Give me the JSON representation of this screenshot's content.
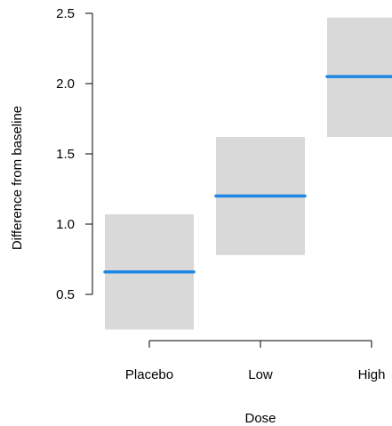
{
  "chart_data": {
    "type": "crossbar",
    "title": "",
    "xlabel": "Dose",
    "ylabel": "Difference from baseline",
    "categories": [
      "Placebo",
      "Low",
      "High"
    ],
    "series": [
      {
        "values": [
          {
            "category": "Placebo",
            "mean": 0.66,
            "lower": 0.25,
            "upper": 1.07
          },
          {
            "category": "Low",
            "mean": 1.2,
            "lower": 0.78,
            "upper": 1.62
          },
          {
            "category": "High",
            "mean": 2.05,
            "lower": 1.62,
            "upper": 2.47
          }
        ]
      }
    ],
    "yticks": [
      0.5,
      1.0,
      1.5,
      2.0,
      2.5
    ],
    "ytick_labels": [
      "0.5",
      "1.0",
      "1.5",
      "2.0",
      "2.5"
    ],
    "ylim": [
      0.25,
      2.5
    ],
    "grid": false,
    "colors": {
      "line": "#1e88e5",
      "band": "#d9d9d9"
    }
  }
}
